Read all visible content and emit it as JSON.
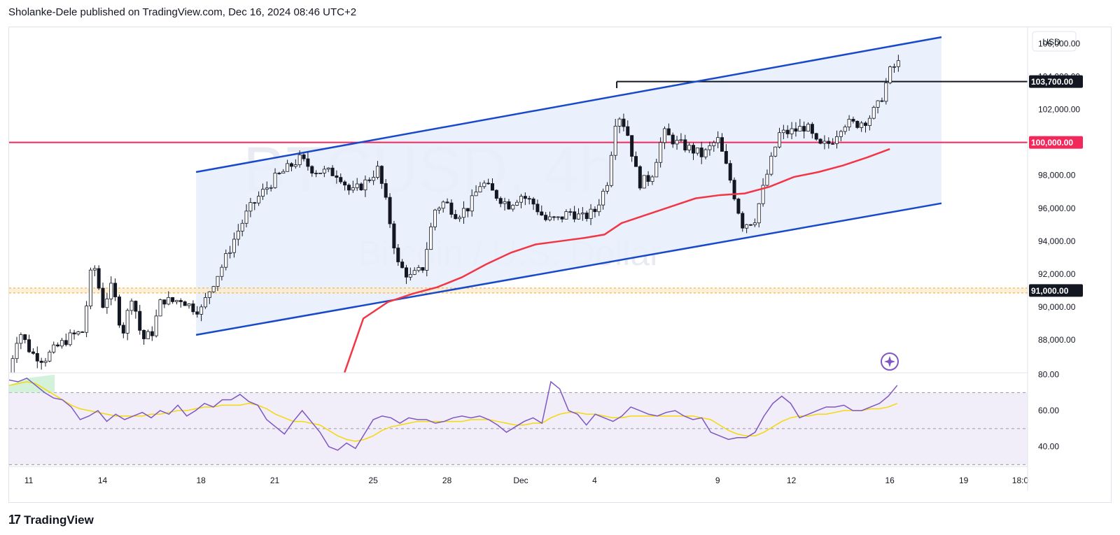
{
  "header": {
    "publisher_line": "Sholanke-Dele published on TradingView.com, Dec 16, 2024 08:46 UTC+2"
  },
  "footer": {
    "brand": "TradingView",
    "logo_glyph": "17"
  },
  "colors": {
    "up": "#ffffff",
    "down": "#131722",
    "channel": "#1848cc",
    "channel_fill": "#e8eefb",
    "ma200": "#f23645",
    "level_100k": "#f2285a",
    "level_91k": "#f5a623",
    "rsi_line": "#7e57c2",
    "rsi_ma": "#f5d90a",
    "rsi_band": "#f1edf9"
  },
  "chart_data": {
    "type": "candlestick",
    "symbol_watermark": "BTCUSD, 4h",
    "symbol_subtitle_watermark": "Bitcoin / U.S. Dollar",
    "currency": "USD",
    "ylim": [
      86000,
      107000
    ],
    "price_ticks": [
      "106,000.00",
      "104,000.00",
      "102,000.00",
      "98,000.00",
      "96,000.00",
      "94,000.00",
      "92,000.00",
      "90,000.00",
      "88,000.00"
    ],
    "price_tick_values": [
      106000,
      104000,
      102000,
      98000,
      96000,
      94000,
      92000,
      90000,
      88000
    ],
    "x_ticks": [
      "11",
      "14",
      "18",
      "21",
      "25",
      "28",
      "Dec",
      "4",
      "9",
      "12",
      "16",
      "19",
      "18:0"
    ],
    "x_tick_pos": [
      0.9,
      3.9,
      7.9,
      10.9,
      14.9,
      17.9,
      20.9,
      23.9,
      28.9,
      31.9,
      35.9,
      38.9,
      41.2
    ],
    "xlim": [
      0.1,
      41.5
    ],
    "labels": [
      {
        "text": "103,700.00",
        "value": 103700,
        "style": "black"
      },
      {
        "text": "100,000.00",
        "value": 100000,
        "style": "red"
      },
      {
        "text": "91,000.00",
        "value": 91000,
        "style": "black"
      }
    ],
    "horizontal_levels": [
      {
        "value": 100000,
        "color": "#f2285a",
        "style": "solid"
      },
      {
        "value": 91000,
        "color": "#f5a623",
        "style": "dashed-band"
      },
      {
        "value": 103700,
        "color": "#131722",
        "style": "solid",
        "from_day": 24.8
      }
    ],
    "channel": {
      "start_day": 7.7,
      "end_day": 38.0,
      "upper": [
        98200,
        106400
      ],
      "lower": [
        88300,
        96300
      ]
    },
    "candles_anchor_prices": [
      [
        0.0,
        85500
      ],
      [
        0.5,
        88600
      ],
      [
        1.0,
        87200
      ],
      [
        1.5,
        86800
      ],
      [
        2.0,
        87500
      ],
      [
        2.6,
        88200
      ],
      [
        3.1,
        88500
      ],
      [
        3.5,
        92900
      ],
      [
        3.9,
        90100
      ],
      [
        4.3,
        91300
      ],
      [
        4.7,
        88300
      ],
      [
        5.1,
        90800
      ],
      [
        5.5,
        88000
      ],
      [
        5.9,
        88400
      ],
      [
        6.3,
        90500
      ],
      [
        6.7,
        90300
      ],
      [
        7.1,
        90500
      ],
      [
        7.5,
        90000
      ],
      [
        7.9,
        89800
      ],
      [
        8.3,
        91200
      ],
      [
        8.8,
        92600
      ],
      [
        9.3,
        94300
      ],
      [
        9.8,
        95800
      ],
      [
        10.3,
        96800
      ],
      [
        10.9,
        97800
      ],
      [
        11.4,
        98400
      ],
      [
        11.9,
        99000
      ],
      [
        12.5,
        98300
      ],
      [
        13.0,
        98200
      ],
      [
        13.5,
        98100
      ],
      [
        14.0,
        96900
      ],
      [
        14.6,
        97600
      ],
      [
        15.1,
        98400
      ],
      [
        15.5,
        95800
      ],
      [
        15.9,
        92600
      ],
      [
        16.4,
        91800
      ],
      [
        16.9,
        92300
      ],
      [
        17.4,
        95900
      ],
      [
        17.8,
        96400
      ],
      [
        18.3,
        95600
      ],
      [
        18.8,
        96100
      ],
      [
        19.3,
        97600
      ],
      [
        19.8,
        96900
      ],
      [
        20.4,
        96200
      ],
      [
        20.9,
        96800
      ],
      [
        21.4,
        96300
      ],
      [
        21.9,
        95300
      ],
      [
        22.4,
        95300
      ],
      [
        22.9,
        95800
      ],
      [
        23.4,
        95400
      ],
      [
        23.9,
        95800
      ],
      [
        24.4,
        97500
      ],
      [
        24.8,
        101900
      ],
      [
        25.2,
        100800
      ],
      [
        25.7,
        97500
      ],
      [
        26.2,
        97900
      ],
      [
        26.7,
        100600
      ],
      [
        27.2,
        100000
      ],
      [
        27.8,
        99600
      ],
      [
        28.3,
        99200
      ],
      [
        28.9,
        100200
      ],
      [
        29.4,
        97800
      ],
      [
        29.9,
        95000
      ],
      [
        30.4,
        95300
      ],
      [
        30.9,
        98000
      ],
      [
        31.4,
        100500
      ],
      [
        32.0,
        100700
      ],
      [
        32.5,
        101000
      ],
      [
        33.0,
        99700
      ],
      [
        33.5,
        100000
      ],
      [
        34.0,
        101200
      ],
      [
        34.5,
        101100
      ],
      [
        35.0,
        101400
      ],
      [
        35.5,
        102400
      ],
      [
        35.9,
        104300
      ],
      [
        36.2,
        104800
      ]
    ],
    "ma200_points": [
      [
        11.1,
        79000
      ],
      [
        12.3,
        82000
      ],
      [
        13.5,
        85000
      ],
      [
        14.5,
        89300
      ],
      [
        15.5,
        90300
      ],
      [
        16.5,
        90800
      ],
      [
        17.5,
        91200
      ],
      [
        18.5,
        91800
      ],
      [
        19.5,
        92600
      ],
      [
        20.5,
        93300
      ],
      [
        21.5,
        93800
      ],
      [
        22.5,
        94000
      ],
      [
        23.5,
        94200
      ],
      [
        24.3,
        94400
      ],
      [
        25.0,
        95100
      ],
      [
        26.0,
        95600
      ],
      [
        27.0,
        96100
      ],
      [
        28.0,
        96600
      ],
      [
        29.0,
        96800
      ],
      [
        30.0,
        96900
      ],
      [
        31.0,
        97300
      ],
      [
        32.0,
        97900
      ],
      [
        33.0,
        98200
      ],
      [
        34.0,
        98600
      ],
      [
        35.0,
        99100
      ],
      [
        35.9,
        99600
      ]
    ],
    "rsi": {
      "ylim": [
        29,
        81
      ],
      "ticks": [
        "80.00",
        "60.00",
        "40.00"
      ],
      "tick_values": [
        80,
        60,
        40
      ],
      "band": [
        30,
        70
      ],
      "values": [
        77,
        76,
        78,
        74,
        70,
        67,
        66,
        62,
        55,
        57,
        60,
        54,
        58,
        55,
        57,
        59,
        56,
        60,
        58,
        63,
        57,
        60,
        64,
        62,
        66,
        66,
        69,
        65,
        63,
        55,
        51,
        47,
        54,
        60,
        54,
        48,
        40,
        38,
        42,
        39,
        47,
        55,
        57,
        56,
        53,
        56,
        55,
        55,
        53,
        54,
        56,
        57,
        56,
        57,
        55,
        52,
        48,
        51,
        54,
        56,
        53,
        76,
        72,
        60,
        58,
        52,
        58,
        56,
        54,
        57,
        62,
        60,
        58,
        57,
        59,
        60,
        57,
        55,
        56,
        48,
        46,
        44,
        45,
        45,
        48,
        57,
        64,
        68,
        64,
        56,
        58,
        60,
        62,
        62,
        63,
        60,
        60,
        62,
        64,
        68,
        74
      ],
      "ma_values": [
        74,
        75,
        76,
        75,
        72,
        69,
        66,
        63,
        61,
        60,
        59,
        58,
        57,
        57,
        57,
        57,
        58,
        58,
        59,
        60,
        60,
        61,
        62,
        62,
        63,
        63,
        63,
        64,
        63,
        61,
        58,
        56,
        54,
        54,
        53,
        52,
        49,
        46,
        44,
        43,
        44,
        46,
        49,
        51,
        52,
        53,
        54,
        54,
        54,
        54,
        54,
        54,
        55,
        55,
        55,
        54,
        53,
        52,
        52,
        53,
        53,
        56,
        58,
        59,
        59,
        58,
        58,
        57,
        56,
        56,
        57,
        57,
        57,
        57,
        57,
        57,
        57,
        57,
        56,
        55,
        52,
        49,
        47,
        46,
        46,
        48,
        51,
        54,
        56,
        57,
        57,
        58,
        58,
        59,
        60,
        60,
        60,
        61,
        61,
        62,
        64
      ]
    }
  }
}
